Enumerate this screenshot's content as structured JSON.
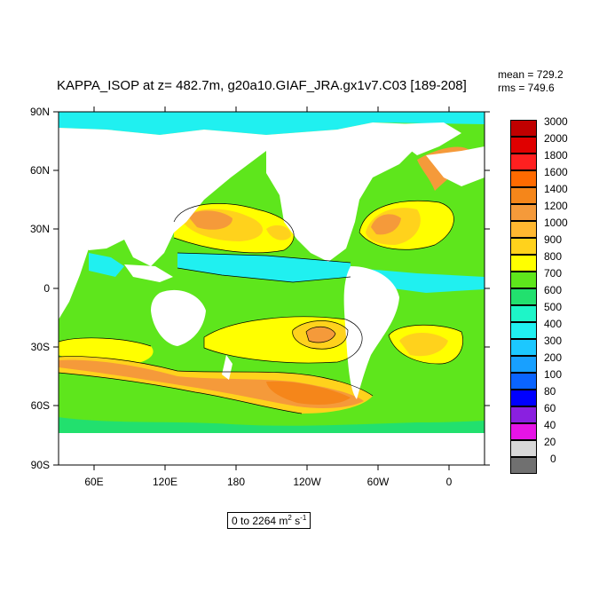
{
  "title": "KAPPA_ISOP at z= 482.7m, g20a10.GIAF_JRA.gx1v7.C03 [189-208]",
  "stats": {
    "mean": "mean = 729.2",
    "rms": "rms = 749.6"
  },
  "range": {
    "text": "0 to 2264 m",
    "unit_sup_1": "2",
    "unit_mid": " s",
    "unit_sup_2": "-1"
  },
  "axes": {
    "y_ticks": [
      "90N",
      "60N",
      "30N",
      "0",
      "30S",
      "60S",
      "90S"
    ],
    "x_ticks": [
      "60E",
      "120E",
      "180",
      "120W",
      "60W",
      "0"
    ]
  },
  "colorbar": {
    "levels": [
      {
        "label": "3000",
        "color": "#c00000"
      },
      {
        "label": "2000",
        "color": "#e00000"
      },
      {
        "label": "1800",
        "color": "#ff2020"
      },
      {
        "label": "1600",
        "color": "#ff6a00"
      },
      {
        "label": "1400",
        "color": "#f5861a"
      },
      {
        "label": "1200",
        "color": "#f59a3a"
      },
      {
        "label": "1000",
        "color": "#ffb830"
      },
      {
        "label": "900",
        "color": "#ffd21c"
      },
      {
        "label": "800",
        "color": "#ffff00"
      },
      {
        "label": "700",
        "color": "#5ee61c"
      },
      {
        "label": "600",
        "color": "#22e06e"
      },
      {
        "label": "500",
        "color": "#1ef5c8"
      },
      {
        "label": "400",
        "color": "#20f0f0"
      },
      {
        "label": "300",
        "color": "#1cc8ff"
      },
      {
        "label": "200",
        "color": "#18a0ff"
      },
      {
        "label": "100",
        "color": "#0a64ff"
      },
      {
        "label": "80",
        "color": "#0000ff"
      },
      {
        "label": "60",
        "color": "#8a20e0"
      },
      {
        "label": "40",
        "color": "#e614e6"
      },
      {
        "label": "20",
        "color": "#d8d8d8"
      },
      {
        "label": "0",
        "color": "#707070"
      }
    ]
  }
}
